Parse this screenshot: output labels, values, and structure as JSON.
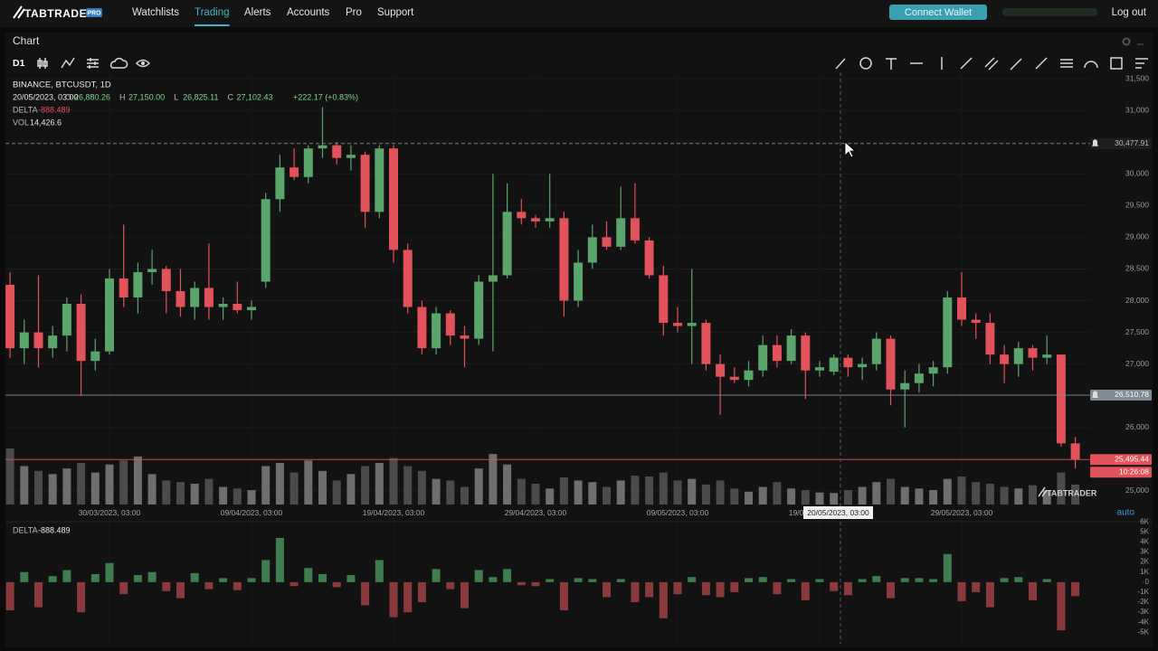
{
  "nav": {
    "logo": "TABTRADER",
    "badge": "PRO",
    "items": [
      "Watchlists",
      "Trading",
      "Alerts",
      "Accounts",
      "Pro",
      "Support"
    ],
    "active": 1,
    "connect": "Connect Wallet",
    "logout": "Log out"
  },
  "panel": {
    "title": "Chart",
    "interval": "D1",
    "auto": "auto",
    "watermark": "TABTRADER"
  },
  "legend": {
    "symbol": "BINANCE, BTCUSDT, 1D",
    "date": "20/05/2023, 03:00",
    "fields": [
      {
        "key": "O",
        "value": "26,880.26"
      },
      {
        "key": "H",
        "value": "27,150.00"
      },
      {
        "key": "L",
        "value": "26,825.11"
      },
      {
        "key": "C",
        "value": "27,102.43"
      }
    ],
    "change": "+222.17 (+0.83%)",
    "delta_key": "DELTA",
    "delta": "-888.489",
    "vol_key": "VOL",
    "vol": "14,426.6"
  },
  "chart_data": {
    "type": "candlestick",
    "categories": [
      null,
      null,
      null,
      null,
      null,
      null,
      null,
      "30/03/2023, 03:00",
      null,
      null,
      null,
      null,
      null,
      null,
      null,
      null,
      null,
      "09/04/2023, 03:00",
      null,
      null,
      null,
      null,
      null,
      null,
      null,
      null,
      null,
      "19/04/2023, 03:00",
      null,
      null,
      null,
      null,
      null,
      null,
      null,
      null,
      null,
      "29/04/2023, 03:00",
      null,
      null,
      null,
      null,
      null,
      null,
      null,
      null,
      null,
      "09/05/2023, 03:00",
      null,
      null,
      null,
      null,
      null,
      null,
      null,
      null,
      null,
      "19/05/2023, 03:00",
      null,
      null,
      null,
      null,
      null,
      null,
      null,
      null,
      null,
      "29/05/2023, 03:00",
      null,
      null,
      null,
      null,
      null,
      null,
      null,
      null
    ],
    "open": [
      28250,
      27250,
      27500,
      27250,
      27450,
      27950,
      27050,
      27200,
      28350,
      28050,
      28450,
      28500,
      28150,
      27900,
      28200,
      27900,
      27950,
      27850,
      28300,
      29600,
      30100,
      29950,
      30400,
      30450,
      30250,
      30300,
      29400,
      30400,
      28800,
      27900,
      27250,
      27800,
      27450,
      27400,
      28300,
      28400,
      29400,
      29300,
      29250,
      29300,
      28000,
      28600,
      29000,
      28850,
      29300,
      28950,
      28400,
      27650,
      27600,
      27650,
      27000,
      26800,
      26750,
      26900,
      27300,
      27050,
      27450,
      26900,
      26880.26,
      27100,
      26950,
      27000,
      27400,
      26600,
      26700,
      26850,
      26950,
      28050,
      27700,
      27650,
      27150,
      27000,
      27250,
      27100,
      27150,
      25750
    ],
    "high": [
      28450,
      27700,
      28400,
      27600,
      28050,
      28100,
      27400,
      28500,
      29200,
      28600,
      28800,
      28550,
      28500,
      28300,
      28900,
      28050,
      28300,
      28000,
      29700,
      30300,
      30400,
      30450,
      31050,
      30500,
      30450,
      30350,
      30450,
      30450,
      28900,
      28000,
      27900,
      27850,
      27600,
      28400,
      30000,
      29850,
      29600,
      29350,
      30000,
      29400,
      28800,
      29200,
      29250,
      29800,
      29850,
      29000,
      28550,
      27900,
      28500,
      27700,
      27150,
      26950,
      27050,
      27450,
      27450,
      27550,
      27500,
      27050,
      27150,
      27150,
      27100,
      27500,
      27450,
      26900,
      27000,
      27050,
      28150,
      28450,
      27800,
      27800,
      27300,
      27350,
      27300,
      27450,
      27150,
      25850
    ],
    "low": [
      27100,
      27000,
      26950,
      27100,
      27200,
      26500,
      26900,
      27150,
      27900,
      27800,
      28250,
      27800,
      27750,
      27700,
      27700,
      27700,
      27800,
      27700,
      28200,
      29400,
      29900,
      29850,
      30250,
      30150,
      30050,
      29150,
      29300,
      28600,
      27800,
      27150,
      27150,
      27300,
      26950,
      27300,
      27200,
      28350,
      29200,
      29150,
      29150,
      27750,
      27900,
      28500,
      28800,
      28800,
      28900,
      28350,
      27450,
      27500,
      27000,
      26900,
      26200,
      26700,
      26650,
      26800,
      26950,
      27000,
      26450,
      26800,
      26825.11,
      26800,
      26750,
      26900,
      26350,
      26000,
      26550,
      26650,
      26850,
      27600,
      27400,
      27000,
      26700,
      26800,
      26900,
      27000,
      25700,
      25350
    ],
    "close": [
      27250,
      27500,
      27250,
      27450,
      27950,
      27050,
      27200,
      28350,
      28050,
      28450,
      28500,
      28150,
      27900,
      28200,
      27900,
      27950,
      27850,
      27900,
      29600,
      30100,
      29950,
      30400,
      30450,
      30250,
      30300,
      29400,
      30400,
      28800,
      27900,
      27250,
      27800,
      27450,
      27400,
      28300,
      28400,
      29400,
      29300,
      29250,
      29300,
      28000,
      28600,
      29000,
      28850,
      29300,
      28950,
      28400,
      27650,
      27600,
      27650,
      27000,
      26800,
      26750,
      26900,
      27300,
      27050,
      27450,
      26900,
      26950,
      27102.43,
      26950,
      27000,
      27400,
      26600,
      26700,
      26850,
      26950,
      28050,
      27700,
      27650,
      27150,
      27000,
      27250,
      27100,
      27150,
      25750,
      25495.44
    ],
    "volume": [
      70000,
      48000,
      42000,
      38000,
      45000,
      52000,
      40000,
      50000,
      55000,
      60000,
      38000,
      30000,
      28000,
      26000,
      32000,
      22000,
      20000,
      18000,
      48000,
      52000,
      40000,
      55000,
      42000,
      30000,
      38000,
      48000,
      52000,
      58000,
      48000,
      42000,
      32000,
      30000,
      22000,
      45000,
      63000,
      50000,
      32000,
      26000,
      20000,
      34000,
      30000,
      28000,
      22000,
      30000,
      36000,
      35000,
      40000,
      30000,
      32000,
      25000,
      30000,
      20000,
      16000,
      22000,
      28000,
      20000,
      18000,
      15000,
      14426.6,
      18000,
      22000,
      28000,
      32000,
      22000,
      20000,
      18000,
      32000,
      35000,
      28000,
      26000,
      22000,
      20000,
      24000,
      18000,
      40000,
      25000
    ],
    "delta": [
      -2800,
      1000,
      -2500,
      600,
      1200,
      -3000,
      800,
      1900,
      -1200,
      700,
      1000,
      -900,
      -1600,
      900,
      -700,
      400,
      -800,
      400,
      2200,
      4400,
      -400,
      1400,
      800,
      -500,
      700,
      -2300,
      2200,
      -3500,
      -3000,
      -2000,
      1300,
      -700,
      -2600,
      1200,
      500,
      1300,
      -300,
      -400,
      300,
      -2800,
      400,
      300,
      -1500,
      300,
      -2000,
      -1500,
      -3600,
      -1200,
      500,
      -1300,
      -1500,
      -1000,
      400,
      500,
      -1200,
      300,
      -1800,
      300,
      -888.489,
      -1300,
      300,
      600,
      -1600,
      400,
      400,
      300,
      2800,
      -1900,
      -1000,
      -2500,
      400,
      500,
      -1800,
      300,
      -4800,
      -1400
    ],
    "up_color": "#5aa56c",
    "down_color": "#e2525a",
    "ylim": [
      24750,
      31600
    ],
    "yticks": [
      {
        "value": 25000,
        "label": "25,000"
      },
      {
        "value": 25500,
        "label": "25,500"
      },
      {
        "value": 26000,
        "label": "26,000"
      },
      {
        "value": 26500,
        "label": "26,500"
      },
      {
        "value": 27000,
        "label": "27,000"
      },
      {
        "value": 27500,
        "label": "27,500"
      },
      {
        "value": 28000,
        "label": "28,000"
      },
      {
        "value": 28500,
        "label": "28,500"
      },
      {
        "value": 29000,
        "label": "29,000"
      },
      {
        "value": 29500,
        "label": "29,500"
      },
      {
        "value": 30000,
        "label": "30,000"
      },
      {
        "value": 30500,
        "label": "30,500"
      },
      {
        "value": 31000,
        "label": "31,000"
      },
      {
        "value": 31500,
        "label": "31,500"
      }
    ],
    "delta_ylim": [
      -5600,
      6200
    ],
    "delta_yticks": [
      {
        "value": 6000,
        "label": "6K"
      },
      {
        "value": 5000,
        "label": "5K"
      },
      {
        "value": 4000,
        "label": "4K"
      },
      {
        "value": 3000,
        "label": "3K"
      },
      {
        "value": 2000,
        "label": "2K"
      },
      {
        "value": 1000,
        "label": "1K"
      },
      0,
      {
        "value": -1000,
        "label": "-1K"
      },
      {
        "value": -2000,
        "label": "-2K"
      },
      {
        "value": -3000,
        "label": "-3K"
      },
      {
        "value": -4000,
        "label": "-4K"
      },
      {
        "value": -5000,
        "label": "-5K"
      }
    ],
    "price_lines": [
      {
        "value": 30477.91,
        "label": "30,477.91",
        "color": "#8a8a8a"
      },
      {
        "value": 26510.78,
        "label": "26,510.78",
        "color": "#7f8c96"
      },
      {
        "value": 25495.44,
        "label": "25,495.44",
        "color": "#e2525a"
      }
    ],
    "countdown": "10:26:08",
    "grid": true
  }
}
